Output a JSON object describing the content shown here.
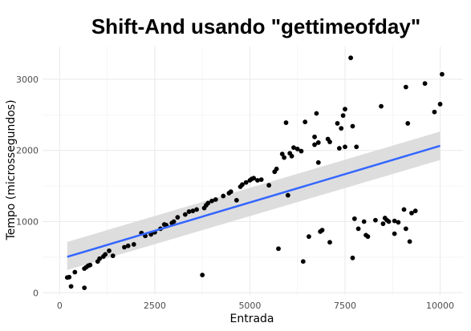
{
  "chart_data": {
    "type": "scatter",
    "title": "Shift-And usando \"gettimeofday\"",
    "xlabel": "Entrada",
    "ylabel": "Tempo (microssegundos)",
    "xlim": [
      -450,
      10600
    ],
    "ylim": [
      -30,
      3460
    ],
    "x_ticks": [
      0,
      2500,
      5000,
      7500,
      10000
    ],
    "x_tick_labels": [
      "0",
      "2500",
      "5000",
      "7500",
      "10000"
    ],
    "y_ticks": [
      0,
      1000,
      2000,
      3000
    ],
    "y_tick_labels": [
      "0",
      "1000",
      "2000",
      "3000"
    ],
    "grid": true,
    "theme": "minimal",
    "point_color": "#000000",
    "fit": {
      "method": "linear",
      "color": "#3366ff",
      "band_color": "#d9d9d9",
      "x": [
        200,
        10000
      ],
      "y": [
        505,
        2065
      ],
      "lower": [
        320,
        1865
      ],
      "upper": [
        715,
        2265
      ]
    },
    "points": [
      [
        200,
        215
      ],
      [
        250,
        220
      ],
      [
        300,
        90
      ],
      [
        400,
        290
      ],
      [
        650,
        70
      ],
      [
        650,
        340
      ],
      [
        700,
        360
      ],
      [
        750,
        380
      ],
      [
        800,
        390
      ],
      [
        1000,
        440
      ],
      [
        1050,
        480
      ],
      [
        1150,
        510
      ],
      [
        1200,
        540
      ],
      [
        1300,
        590
      ],
      [
        1400,
        520
      ],
      [
        1700,
        640
      ],
      [
        1800,
        660
      ],
      [
        1950,
        680
      ],
      [
        2150,
        840
      ],
      [
        2250,
        800
      ],
      [
        2400,
        820
      ],
      [
        2500,
        850
      ],
      [
        2650,
        900
      ],
      [
        2750,
        960
      ],
      [
        2800,
        950
      ],
      [
        2950,
        980
      ],
      [
        3000,
        1000
      ],
      [
        3100,
        1060
      ],
      [
        3300,
        1100
      ],
      [
        3400,
        1140
      ],
      [
        3500,
        1150
      ],
      [
        3600,
        1170
      ],
      [
        3750,
        250
      ],
      [
        3800,
        1190
      ],
      [
        3850,
        1230
      ],
      [
        3900,
        1260
      ],
      [
        4000,
        1290
      ],
      [
        4100,
        1310
      ],
      [
        4300,
        1360
      ],
      [
        4450,
        1400
      ],
      [
        4500,
        1420
      ],
      [
        4650,
        1300
      ],
      [
        4750,
        1490
      ],
      [
        4800,
        1520
      ],
      [
        4900,
        1550
      ],
      [
        5000,
        1580
      ],
      [
        5050,
        1600
      ],
      [
        5100,
        1610
      ],
      [
        5200,
        1580
      ],
      [
        5300,
        1590
      ],
      [
        5500,
        1510
      ],
      [
        5650,
        1700
      ],
      [
        5700,
        1740
      ],
      [
        5750,
        620
      ],
      [
        5850,
        1950
      ],
      [
        5900,
        1900
      ],
      [
        5950,
        2390
      ],
      [
        6000,
        1370
      ],
      [
        6050,
        1960
      ],
      [
        6100,
        1920
      ],
      [
        6150,
        2040
      ],
      [
        6250,
        2020
      ],
      [
        6350,
        1990
      ],
      [
        6400,
        440
      ],
      [
        6450,
        2400
      ],
      [
        6550,
        790
      ],
      [
        6700,
        2190
      ],
      [
        6700,
        2080
      ],
      [
        6750,
        2520
      ],
      [
        6800,
        1830
      ],
      [
        6800,
        2110
      ],
      [
        6850,
        860
      ],
      [
        6900,
        880
      ],
      [
        7050,
        2160
      ],
      [
        7100,
        2120
      ],
      [
        7100,
        710
      ],
      [
        7300,
        2380
      ],
      [
        7350,
        2030
      ],
      [
        7400,
        2310
      ],
      [
        7450,
        2490
      ],
      [
        7500,
        2580
      ],
      [
        7500,
        2050
      ],
      [
        7650,
        3300
      ],
      [
        7700,
        2340
      ],
      [
        7700,
        490
      ],
      [
        7750,
        1040
      ],
      [
        7800,
        2050
      ],
      [
        7850,
        900
      ],
      [
        8000,
        1000
      ],
      [
        8050,
        810
      ],
      [
        8100,
        790
      ],
      [
        8300,
        1020
      ],
      [
        8450,
        2620
      ],
      [
        8500,
        970
      ],
      [
        8550,
        1050
      ],
      [
        8600,
        1020
      ],
      [
        8650,
        1000
      ],
      [
        8800,
        830
      ],
      [
        8800,
        1010
      ],
      [
        8900,
        990
      ],
      [
        9050,
        1170
      ],
      [
        9100,
        900
      ],
      [
        9100,
        2890
      ],
      [
        9150,
        2380
      ],
      [
        9200,
        720
      ],
      [
        9250,
        1120
      ],
      [
        9350,
        1150
      ],
      [
        9600,
        2940
      ],
      [
        9850,
        2540
      ],
      [
        10000,
        2650
      ],
      [
        10050,
        3070
      ]
    ]
  }
}
